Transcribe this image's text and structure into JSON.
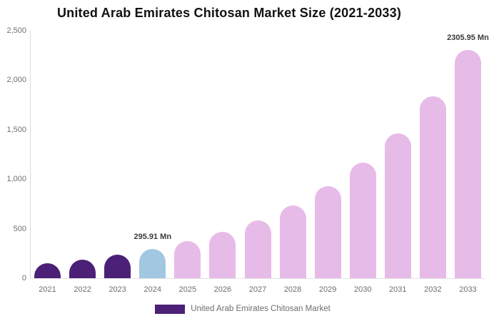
{
  "chart_data": {
    "type": "bar",
    "title": "United Arab Emirates Chitosan Market Size (2021-2033)",
    "xlabel": "",
    "ylabel": "",
    "categories": [
      "2021",
      "2022",
      "2023",
      "2024",
      "2025",
      "2026",
      "2027",
      "2028",
      "2029",
      "2030",
      "2031",
      "2032",
      "2033"
    ],
    "values": [
      149.3,
      187.5,
      235.5,
      295.91,
      371.8,
      467.1,
      586.8,
      737.2,
      926.2,
      1163.7,
      1462.0,
      1836.8,
      2305.95
    ],
    "unit": "Mn",
    "ylim": [
      0,
      2500
    ],
    "yticks": [
      0,
      500,
      1000,
      1500,
      2000,
      2500
    ],
    "ytick_labels": [
      "0",
      "500",
      "1,000",
      "1,500",
      "2,000",
      "2,500"
    ],
    "grid": false,
    "bar_colors": [
      "#4B2076",
      "#4B2076",
      "#4B2076",
      "#A1C8E0",
      "#E7BBE8",
      "#E7BBE8",
      "#E7BBE8",
      "#E7BBE8",
      "#E7BBE8",
      "#E7BBE8",
      "#E7BBE8",
      "#E7BBE8",
      "#E7BBE8"
    ],
    "data_labels": [
      {
        "index": 3,
        "text": "295.91 Mn"
      },
      {
        "index": 12,
        "text": "2305.95 Mn"
      }
    ],
    "legend": {
      "position": "bottom",
      "entries": [
        {
          "label": "United Arab Emirates Chitosan Market",
          "color": "#4B2076"
        }
      ]
    }
  },
  "colors": {
    "background": "#ffffff",
    "axis_line": "#dcdcdc",
    "tick_text": "#6e6e6e",
    "title_text": "#111111",
    "data_label_text": "#3a3a3a"
  }
}
